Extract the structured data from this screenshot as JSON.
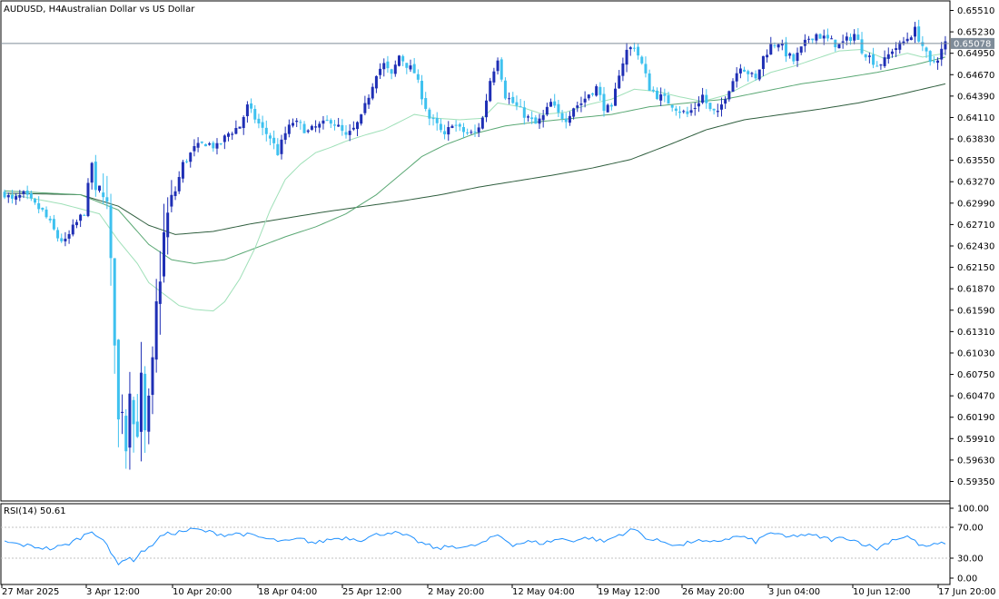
{
  "header": {
    "symbol": "AUDUSD, H4:",
    "description": "Australian Dollar vs US Dollar"
  },
  "price_axis": {
    "labels": [
      "0.65510",
      "0.65230",
      "0.64950",
      "0.64670",
      "0.64390",
      "0.64110",
      "0.63830",
      "0.63550",
      "0.63270",
      "0.62990",
      "0.62710",
      "0.62430",
      "0.62150",
      "0.61870",
      "0.61590",
      "0.61310",
      "0.61030",
      "0.60750",
      "0.60470",
      "0.60190",
      "0.59910",
      "0.59630",
      "0.59350"
    ],
    "current_price": "0.65078",
    "current_price_value": 0.65078
  },
  "rsi_panel": {
    "label": "RSI(14) 50.61",
    "levels": [
      "100.00",
      "70.00",
      "30.00",
      "0.00"
    ]
  },
  "time_axis": {
    "labels": [
      "27 Mar 2025",
      "3 Apr 12:00",
      "10 Apr 20:00",
      "18 Apr 04:00",
      "25 Apr 12:00",
      "2 May 20:00",
      "12 May 04:00",
      "19 May 12:00",
      "26 May 20:00",
      "3 Jun 04:00",
      "10 Jun 12:00",
      "17 Jun 20:00"
    ]
  },
  "colors": {
    "bull": "#1f2fb5",
    "bear": "#3ec1ef",
    "ma_fast": "#9fe0b8",
    "ma_mid": "#5aa874",
    "ma_slow": "#2f5e3e",
    "rsi": "#1e90ff",
    "grid_level": "#c0c0c0",
    "price_line": "#7f8c99"
  },
  "chart_data": {
    "type": "candlestick",
    "title": "AUDUSD, H4: Australian Dollar vs US Dollar",
    "ylim": [
      0.592,
      0.6559
    ],
    "indicators": [
      "moving average (fast)",
      "moving average (mid)",
      "moving average (slow)",
      "RSI(14)"
    ],
    "price_path": [
      [
        0,
        0.6312
      ],
      [
        2,
        0.6302
      ],
      [
        5,
        0.631
      ],
      [
        8,
        0.6296
      ],
      [
        10,
        0.6288
      ],
      [
        12,
        0.6272
      ],
      [
        14,
        0.6254
      ],
      [
        16,
        0.6248
      ],
      [
        18,
        0.6266
      ],
      [
        21,
        0.6288
      ],
      [
        23,
        0.6352
      ],
      [
        24,
        0.6312
      ],
      [
        26,
        0.6326
      ],
      [
        27,
        0.629
      ],
      [
        28,
        0.621
      ],
      [
        29,
        0.613
      ],
      [
        30,
        0.601
      ],
      [
        31,
        0.604
      ],
      [
        32,
        0.5985
      ],
      [
        33,
        0.607
      ],
      [
        34,
        0.601
      ],
      [
        35,
        0.601
      ],
      [
        36,
        0.606
      ],
      [
        37,
        0.599
      ],
      [
        38,
        0.603
      ],
      [
        39,
        0.608
      ],
      [
        40,
        0.616
      ],
      [
        41,
        0.621
      ],
      [
        42,
        0.6255
      ],
      [
        43,
        0.628
      ],
      [
        45,
        0.6315
      ],
      [
        47,
        0.635
      ],
      [
        50,
        0.637
      ],
      [
        53,
        0.6378
      ],
      [
        56,
        0.6372
      ],
      [
        59,
        0.639
      ],
      [
        62,
        0.64
      ],
      [
        64,
        0.6425
      ],
      [
        66,
        0.641
      ],
      [
        68,
        0.6395
      ],
      [
        70,
        0.6385
      ],
      [
        72,
        0.6365
      ],
      [
        74,
        0.639
      ],
      [
        76,
        0.6405
      ],
      [
        78,
        0.64
      ],
      [
        80,
        0.6392
      ],
      [
        82,
        0.6398
      ],
      [
        84,
        0.6402
      ],
      [
        86,
        0.6408
      ],
      [
        88,
        0.6398
      ],
      [
        90,
        0.6385
      ],
      [
        92,
        0.6395
      ],
      [
        94,
        0.641
      ],
      [
        96,
        0.644
      ],
      [
        98,
        0.647
      ],
      [
        100,
        0.648
      ],
      [
        102,
        0.6465
      ],
      [
        104,
        0.6492
      ],
      [
        106,
        0.648
      ],
      [
        108,
        0.647
      ],
      [
        110,
        0.644
      ],
      [
        112,
        0.641
      ],
      [
        114,
        0.64
      ],
      [
        116,
        0.6385
      ],
      [
        118,
        0.6405
      ],
      [
        120,
        0.6395
      ],
      [
        122,
        0.639
      ],
      [
        124,
        0.639
      ],
      [
        126,
        0.641
      ],
      [
        128,
        0.646
      ],
      [
        130,
        0.649
      ],
      [
        132,
        0.644
      ],
      [
        134,
        0.643
      ],
      [
        136,
        0.642
      ],
      [
        138,
        0.641
      ],
      [
        140,
        0.6402
      ],
      [
        142,
        0.6412
      ],
      [
        144,
        0.643
      ],
      [
        146,
        0.6415
      ],
      [
        148,
        0.641
      ],
      [
        150,
        0.6425
      ],
      [
        152,
        0.643
      ],
      [
        154,
        0.6442
      ],
      [
        156,
        0.645
      ],
      [
        158,
        0.6425
      ],
      [
        160,
        0.642
      ],
      [
        162,
        0.647
      ],
      [
        164,
        0.6498
      ],
      [
        166,
        0.6505
      ],
      [
        168,
        0.648
      ],
      [
        170,
        0.645
      ],
      [
        172,
        0.644
      ],
      [
        174,
        0.6435
      ],
      [
        176,
        0.6428
      ],
      [
        178,
        0.642
      ],
      [
        180,
        0.6415
      ],
      [
        182,
        0.6425
      ],
      [
        184,
        0.644
      ],
      [
        186,
        0.642
      ],
      [
        188,
        0.6415
      ],
      [
        190,
        0.644
      ],
      [
        192,
        0.646
      ],
      [
        194,
        0.648
      ],
      [
        196,
        0.647
      ],
      [
        198,
        0.646
      ],
      [
        200,
        0.649
      ],
      [
        202,
        0.6505
      ],
      [
        204,
        0.651
      ],
      [
        206,
        0.6495
      ],
      [
        208,
        0.6485
      ],
      [
        210,
        0.65
      ],
      [
        212,
        0.6515
      ],
      [
        214,
        0.652
      ],
      [
        216,
        0.6515
      ],
      [
        218,
        0.651
      ],
      [
        220,
        0.6505
      ],
      [
        222,
        0.6512
      ],
      [
        224,
        0.652
      ],
      [
        226,
        0.65
      ],
      [
        228,
        0.649
      ],
      [
        230,
        0.648
      ],
      [
        232,
        0.6485
      ],
      [
        234,
        0.65
      ],
      [
        236,
        0.6505
      ],
      [
        238,
        0.6515
      ],
      [
        240,
        0.6525
      ],
      [
        242,
        0.6505
      ],
      [
        244,
        0.648
      ],
      [
        246,
        0.649
      ],
      [
        248,
        0.6508
      ]
    ],
    "ma_fast": [
      [
        0,
        0.6312
      ],
      [
        15,
        0.6298
      ],
      [
        25,
        0.6285
      ],
      [
        30,
        0.625
      ],
      [
        35,
        0.622
      ],
      [
        38,
        0.6195
      ],
      [
        42,
        0.618
      ],
      [
        46,
        0.6165
      ],
      [
        50,
        0.616
      ],
      [
        55,
        0.6158
      ],
      [
        58,
        0.617
      ],
      [
        62,
        0.62
      ],
      [
        66,
        0.624
      ],
      [
        70,
        0.629
      ],
      [
        74,
        0.633
      ],
      [
        78,
        0.635
      ],
      [
        82,
        0.6365
      ],
      [
        86,
        0.6372
      ],
      [
        90,
        0.638
      ],
      [
        95,
        0.6388
      ],
      [
        100,
        0.6395
      ],
      [
        104,
        0.6405
      ],
      [
        108,
        0.6415
      ],
      [
        114,
        0.641
      ],
      [
        120,
        0.6408
      ],
      [
        126,
        0.641
      ],
      [
        130,
        0.643
      ],
      [
        136,
        0.6425
      ],
      [
        142,
        0.6415
      ],
      [
        148,
        0.6418
      ],
      [
        154,
        0.6428
      ],
      [
        160,
        0.6435
      ],
      [
        166,
        0.6448
      ],
      [
        172,
        0.6445
      ],
      [
        178,
        0.6438
      ],
      [
        184,
        0.6432
      ],
      [
        190,
        0.644
      ],
      [
        196,
        0.6455
      ],
      [
        202,
        0.647
      ],
      [
        208,
        0.6478
      ],
      [
        214,
        0.6488
      ],
      [
        220,
        0.6498
      ],
      [
        226,
        0.65
      ],
      [
        232,
        0.6488
      ],
      [
        238,
        0.6495
      ],
      [
        242,
        0.649
      ],
      [
        248,
        0.6495
      ]
    ],
    "ma_mid": [
      [
        0,
        0.6315
      ],
      [
        20,
        0.631
      ],
      [
        30,
        0.629
      ],
      [
        38,
        0.6245
      ],
      [
        44,
        0.6225
      ],
      [
        50,
        0.622
      ],
      [
        58,
        0.6225
      ],
      [
        66,
        0.624
      ],
      [
        74,
        0.6255
      ],
      [
        82,
        0.6268
      ],
      [
        90,
        0.6285
      ],
      [
        98,
        0.631
      ],
      [
        104,
        0.6335
      ],
      [
        110,
        0.636
      ],
      [
        116,
        0.6375
      ],
      [
        124,
        0.639
      ],
      [
        132,
        0.64
      ],
      [
        140,
        0.6405
      ],
      [
        150,
        0.641
      ],
      [
        160,
        0.6415
      ],
      [
        170,
        0.6425
      ],
      [
        180,
        0.643
      ],
      [
        190,
        0.6435
      ],
      [
        200,
        0.6445
      ],
      [
        210,
        0.6455
      ],
      [
        220,
        0.6462
      ],
      [
        230,
        0.647
      ],
      [
        240,
        0.648
      ],
      [
        248,
        0.649
      ]
    ],
    "ma_slow": [
      [
        0,
        0.6312
      ],
      [
        20,
        0.631
      ],
      [
        30,
        0.6295
      ],
      [
        38,
        0.627
      ],
      [
        45,
        0.6258
      ],
      [
        55,
        0.6262
      ],
      [
        65,
        0.6272
      ],
      [
        75,
        0.628
      ],
      [
        85,
        0.6288
      ],
      [
        95,
        0.6295
      ],
      [
        105,
        0.6302
      ],
      [
        115,
        0.631
      ],
      [
        125,
        0.632
      ],
      [
        135,
        0.6328
      ],
      [
        145,
        0.6336
      ],
      [
        155,
        0.6345
      ],
      [
        165,
        0.6356
      ],
      [
        175,
        0.6375
      ],
      [
        185,
        0.6395
      ],
      [
        195,
        0.6408
      ],
      [
        205,
        0.6415
      ],
      [
        215,
        0.6422
      ],
      [
        225,
        0.643
      ],
      [
        235,
        0.644
      ],
      [
        248,
        0.6455
      ]
    ],
    "rsi": [
      [
        0,
        52
      ],
      [
        4,
        48
      ],
      [
        8,
        45
      ],
      [
        12,
        42
      ],
      [
        16,
        47
      ],
      [
        20,
        58
      ],
      [
        23,
        68
      ],
      [
        26,
        55
      ],
      [
        28,
        35
      ],
      [
        30,
        22
      ],
      [
        32,
        28
      ],
      [
        34,
        26
      ],
      [
        36,
        38
      ],
      [
        38,
        42
      ],
      [
        40,
        55
      ],
      [
        42,
        62
      ],
      [
        46,
        66
      ],
      [
        50,
        70
      ],
      [
        54,
        66
      ],
      [
        58,
        62
      ],
      [
        62,
        64
      ],
      [
        66,
        60
      ],
      [
        70,
        55
      ],
      [
        74,
        52
      ],
      [
        78,
        56
      ],
      [
        82,
        50
      ],
      [
        86,
        56
      ],
      [
        90,
        58
      ],
      [
        94,
        55
      ],
      [
        98,
        62
      ],
      [
        102,
        66
      ],
      [
        106,
        60
      ],
      [
        110,
        50
      ],
      [
        114,
        42
      ],
      [
        118,
        46
      ],
      [
        122,
        44
      ],
      [
        126,
        50
      ],
      [
        130,
        62
      ],
      [
        134,
        48
      ],
      [
        138,
        52
      ],
      [
        142,
        50
      ],
      [
        146,
        56
      ],
      [
        150,
        54
      ],
      [
        154,
        58
      ],
      [
        158,
        52
      ],
      [
        162,
        62
      ],
      [
        166,
        70
      ],
      [
        170,
        55
      ],
      [
        174,
        52
      ],
      [
        178,
        46
      ],
      [
        182,
        54
      ],
      [
        186,
        50
      ],
      [
        190,
        56
      ],
      [
        194,
        60
      ],
      [
        198,
        52
      ],
      [
        202,
        66
      ],
      [
        206,
        58
      ],
      [
        210,
        62
      ],
      [
        214,
        60
      ],
      [
        218,
        55
      ],
      [
        222,
        58
      ],
      [
        226,
        50
      ],
      [
        230,
        42
      ],
      [
        234,
        55
      ],
      [
        238,
        60
      ],
      [
        242,
        45
      ],
      [
        246,
        48
      ],
      [
        248,
        51
      ]
    ]
  }
}
